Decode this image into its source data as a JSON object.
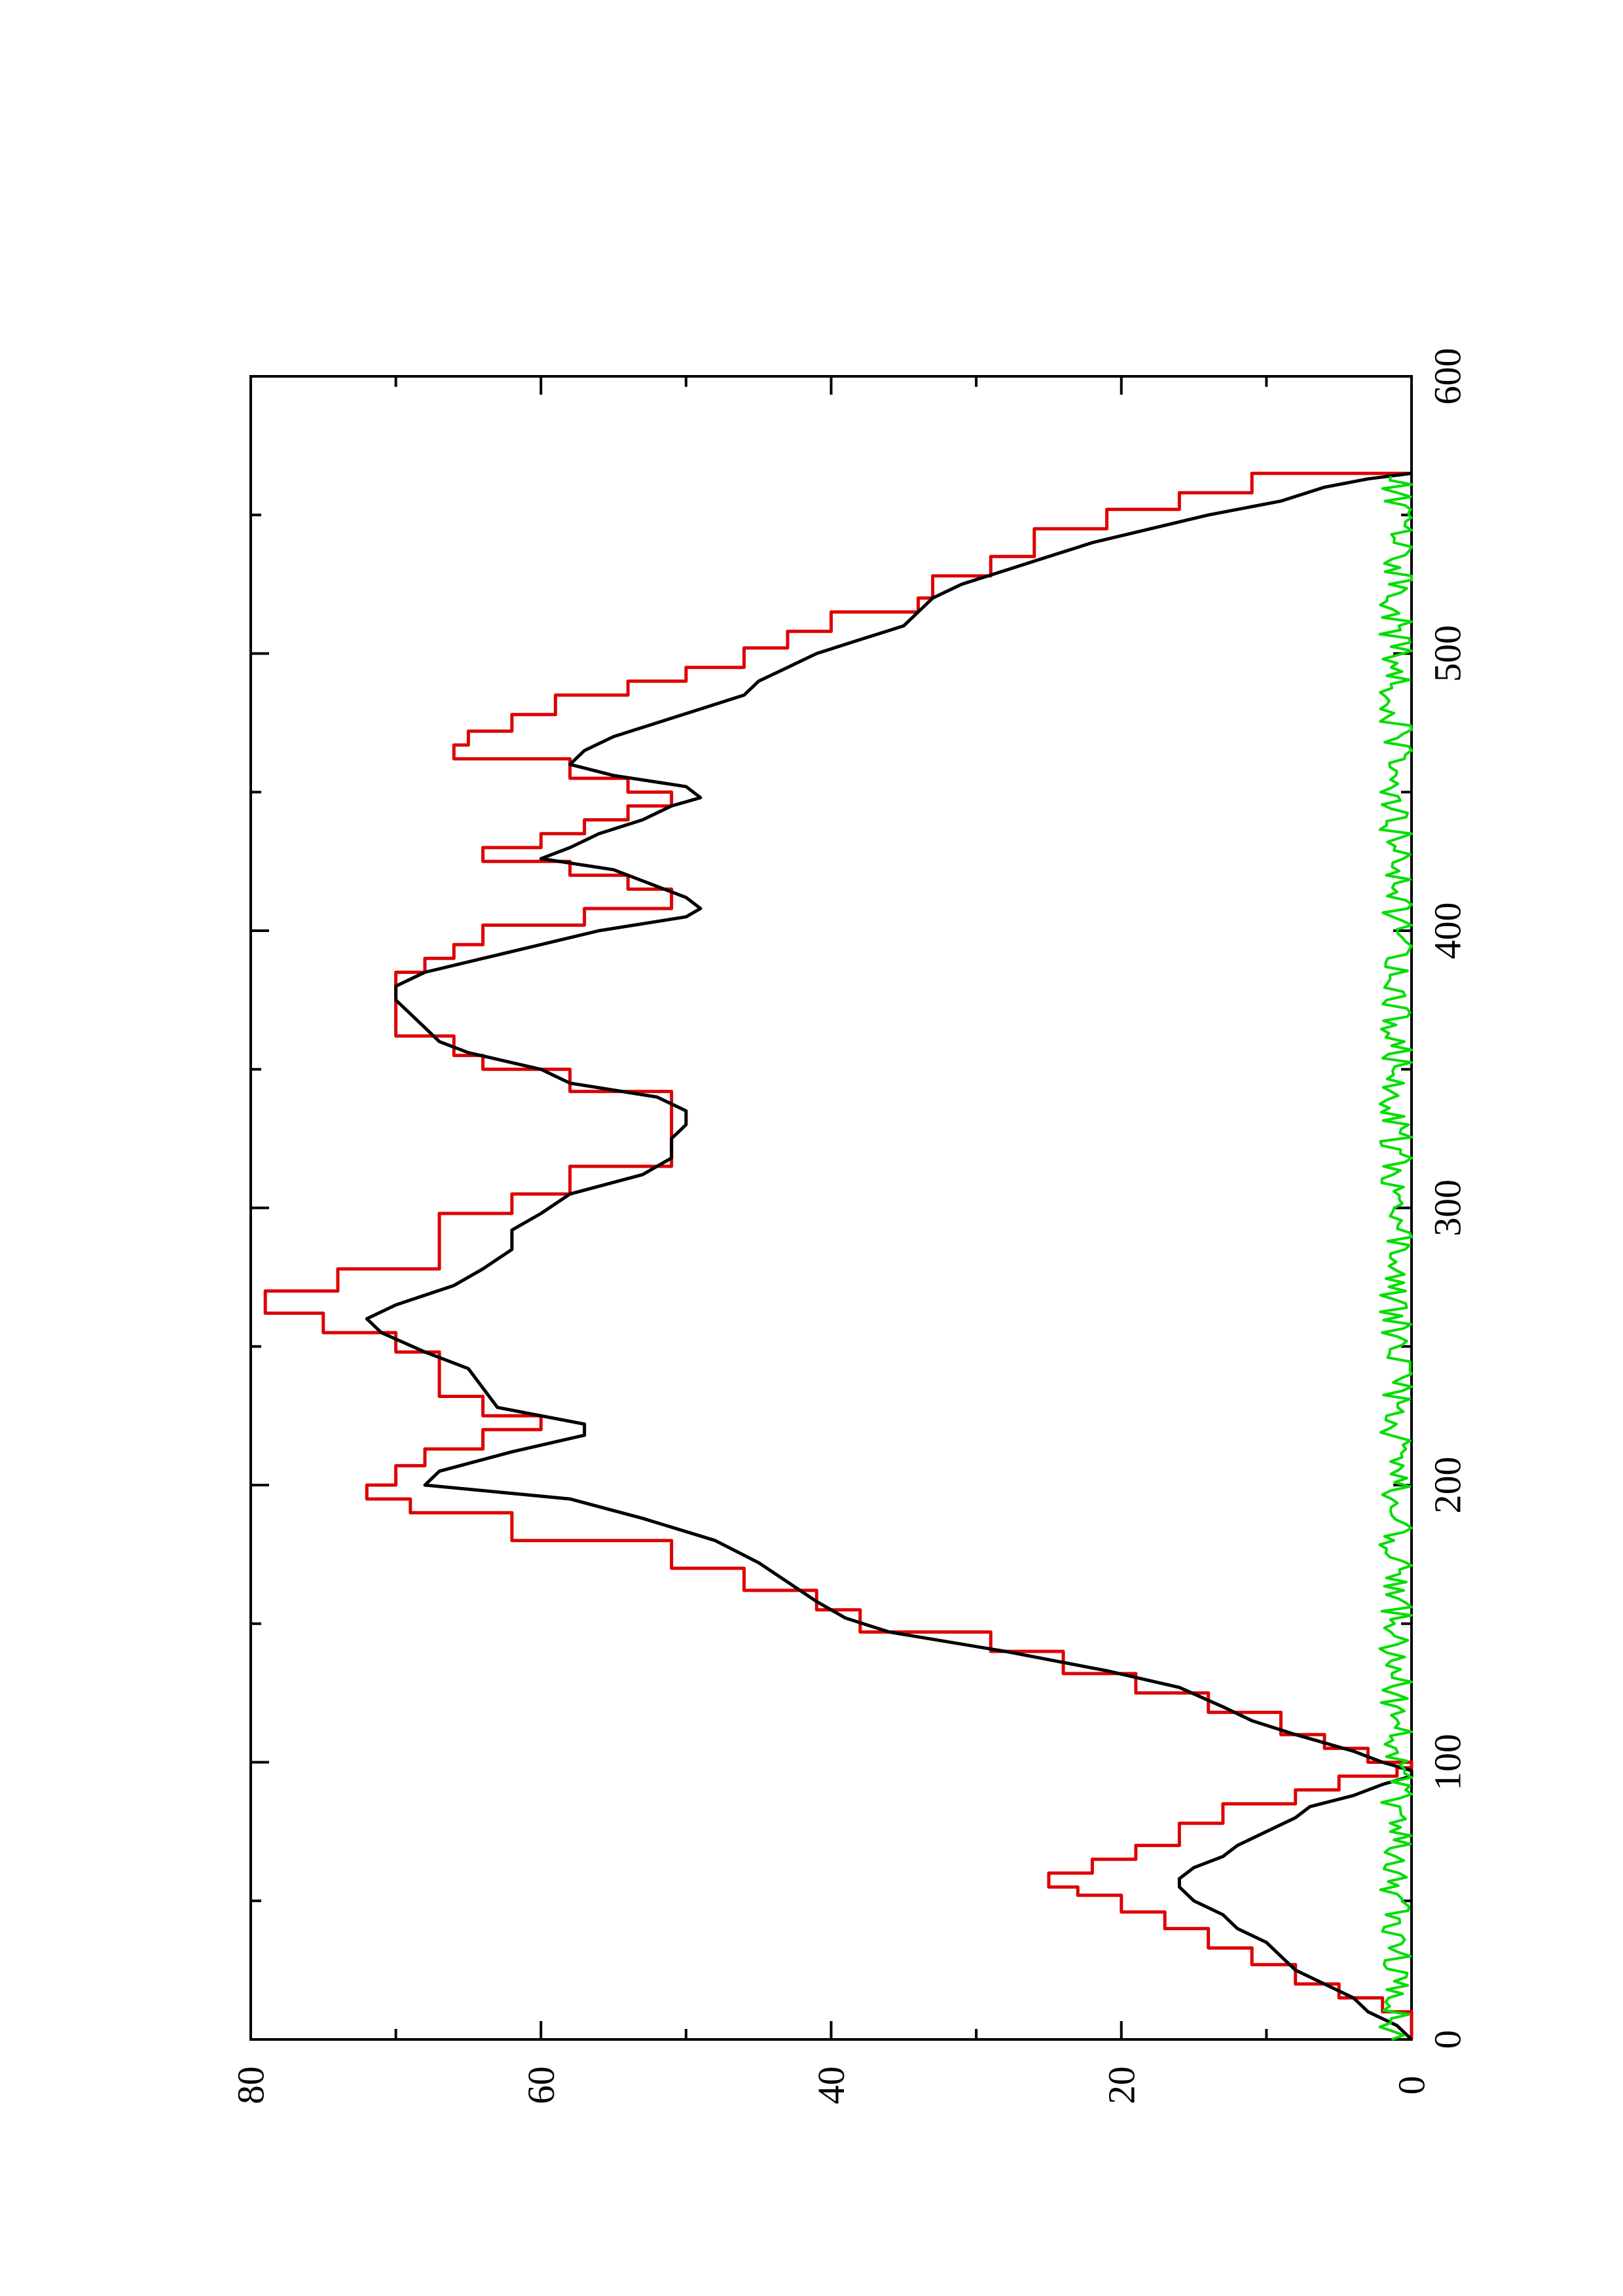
{
  "chart_data": {
    "type": "line",
    "orientation": "rotated 90 degrees counter-clockwise (page is landscape plot printed portrait)",
    "title": "",
    "xlabel": "",
    "ylabel": "",
    "xlim": [
      0,
      600
    ],
    "ylim": [
      0,
      80
    ],
    "x_ticks": [
      0,
      100,
      200,
      300,
      400,
      500,
      600
    ],
    "y_ticks": [
      0,
      20,
      40,
      60,
      80
    ],
    "x_tick_labels": [
      "0",
      "100",
      "200",
      "300",
      "400",
      "500",
      "600"
    ],
    "y_tick_labels": [
      "0",
      "20",
      "40",
      "60",
      "80"
    ],
    "grid": false,
    "legend": "none",
    "series": [
      {
        "color": "#dd0000",
        "style": "step",
        "points": [
          [
            0,
            0
          ],
          [
            10,
            2
          ],
          [
            15,
            5
          ],
          [
            20,
            8
          ],
          [
            27,
            11
          ],
          [
            33,
            14
          ],
          [
            40,
            17
          ],
          [
            46,
            20
          ],
          [
            52,
            23
          ],
          [
            55,
            25
          ],
          [
            60,
            22
          ],
          [
            65,
            19
          ],
          [
            70,
            16
          ],
          [
            78,
            13
          ],
          [
            85,
            8
          ],
          [
            90,
            5
          ],
          [
            95,
            1
          ],
          [
            98,
            0
          ],
          [
            100,
            3
          ],
          [
            105,
            6
          ],
          [
            110,
            9
          ],
          [
            118,
            14
          ],
          [
            125,
            19
          ],
          [
            132,
            24
          ],
          [
            140,
            29
          ],
          [
            147,
            38
          ],
          [
            155,
            41
          ],
          [
            162,
            46
          ],
          [
            170,
            51
          ],
          [
            180,
            62
          ],
          [
            190,
            69
          ],
          [
            195,
            72
          ],
          [
            200,
            70
          ],
          [
            207,
            68
          ],
          [
            213,
            64
          ],
          [
            220,
            60
          ],
          [
            225,
            64
          ],
          [
            232,
            67
          ],
          [
            240,
            67
          ],
          [
            248,
            70
          ],
          [
            255,
            75
          ],
          [
            262,
            79
          ],
          [
            270,
            74
          ],
          [
            278,
            67
          ],
          [
            285,
            67
          ],
          [
            292,
            67
          ],
          [
            298,
            62
          ],
          [
            305,
            58
          ],
          [
            315,
            51
          ],
          [
            320,
            51
          ],
          [
            325,
            51
          ],
          [
            335,
            51
          ],
          [
            342,
            58
          ],
          [
            350,
            64
          ],
          [
            355,
            66
          ],
          [
            362,
            70
          ],
          [
            370,
            70
          ],
          [
            378,
            70
          ],
          [
            385,
            68
          ],
          [
            390,
            66
          ],
          [
            395,
            64
          ],
          [
            402,
            57
          ],
          [
            408,
            51
          ],
          [
            415,
            54
          ],
          [
            420,
            58
          ],
          [
            425,
            64
          ],
          [
            430,
            60
          ],
          [
            435,
            57
          ],
          [
            440,
            54
          ],
          [
            445,
            51
          ],
          [
            450,
            54
          ],
          [
            455,
            58
          ],
          [
            462,
            66
          ],
          [
            467,
            65
          ],
          [
            472,
            62
          ],
          [
            478,
            59
          ],
          [
            485,
            54
          ],
          [
            490,
            50
          ],
          [
            495,
            46
          ],
          [
            502,
            43
          ],
          [
            508,
            40
          ],
          [
            515,
            34
          ],
          [
            520,
            33
          ],
          [
            528,
            29
          ],
          [
            535,
            26
          ],
          [
            545,
            21
          ],
          [
            552,
            16
          ],
          [
            558,
            11
          ],
          [
            565,
            0
          ]
        ]
      },
      {
        "color": "#000000",
        "style": "line",
        "points": [
          [
            0,
            0
          ],
          [
            5,
            1
          ],
          [
            10,
            3
          ],
          [
            15,
            4
          ],
          [
            20,
            6
          ],
          [
            25,
            8
          ],
          [
            30,
            9
          ],
          [
            35,
            10
          ],
          [
            40,
            12
          ],
          [
            45,
            13
          ],
          [
            50,
            15
          ],
          [
            55,
            16
          ],
          [
            58,
            16
          ],
          [
            62,
            15
          ],
          [
            66,
            13
          ],
          [
            70,
            12
          ],
          [
            75,
            10
          ],
          [
            80,
            8
          ],
          [
            84,
            7
          ],
          [
            88,
            4
          ],
          [
            92,
            2
          ],
          [
            95,
            0
          ],
          [
            97,
            0
          ],
          [
            100,
            2
          ],
          [
            104,
            4
          ],
          [
            110,
            8
          ],
          [
            115,
            11
          ],
          [
            120,
            13
          ],
          [
            127,
            16
          ],
          [
            133,
            21
          ],
          [
            140,
            28
          ],
          [
            147,
            36
          ],
          [
            152,
            39
          ],
          [
            158,
            41
          ],
          [
            165,
            43
          ],
          [
            172,
            45
          ],
          [
            180,
            48
          ],
          [
            188,
            53
          ],
          [
            195,
            58
          ],
          [
            200,
            68
          ],
          [
            205,
            67
          ],
          [
            212,
            62
          ],
          [
            218,
            57
          ],
          [
            222,
            57
          ],
          [
            228,
            63
          ],
          [
            235,
            64
          ],
          [
            242,
            65
          ],
          [
            248,
            68
          ],
          [
            255,
            71
          ],
          [
            260,
            72
          ],
          [
            265,
            70
          ],
          [
            272,
            66
          ],
          [
            278,
            64
          ],
          [
            285,
            62
          ],
          [
            292,
            62
          ],
          [
            298,
            60
          ],
          [
            305,
            58
          ],
          [
            312,
            53
          ],
          [
            318,
            51
          ],
          [
            325,
            51
          ],
          [
            330,
            50
          ],
          [
            335,
            50
          ],
          [
            340,
            52
          ],
          [
            345,
            58
          ],
          [
            350,
            60
          ],
          [
            356,
            65
          ],
          [
            360,
            67
          ],
          [
            365,
            68
          ],
          [
            370,
            69
          ],
          [
            375,
            70
          ],
          [
            380,
            70
          ],
          [
            385,
            68
          ],
          [
            390,
            64
          ],
          [
            395,
            60
          ],
          [
            400,
            56
          ],
          [
            405,
            50
          ],
          [
            408,
            49
          ],
          [
            412,
            50
          ],
          [
            418,
            53
          ],
          [
            422,
            55
          ],
          [
            426,
            60
          ],
          [
            430,
            58
          ],
          [
            435,
            56
          ],
          [
            440,
            53
          ],
          [
            445,
            51
          ],
          [
            448,
            49
          ],
          [
            452,
            50
          ],
          [
            456,
            55
          ],
          [
            460,
            58
          ],
          [
            465,
            57
          ],
          [
            470,
            55
          ],
          [
            475,
            52
          ],
          [
            480,
            49
          ],
          [
            485,
            46
          ],
          [
            490,
            45
          ],
          [
            495,
            43
          ],
          [
            500,
            41
          ],
          [
            505,
            38
          ],
          [
            510,
            35
          ],
          [
            515,
            34
          ],
          [
            520,
            33
          ],
          [
            525,
            31
          ],
          [
            530,
            28
          ],
          [
            535,
            25
          ],
          [
            540,
            22
          ],
          [
            545,
            18
          ],
          [
            550,
            14
          ],
          [
            555,
            9
          ],
          [
            560,
            6
          ],
          [
            563,
            3
          ],
          [
            565,
            0
          ]
        ]
      },
      {
        "color": "#00dd00",
        "style": "noise",
        "mean": 1.0,
        "amplitude": 1.2,
        "x_range": [
          0,
          565
        ]
      }
    ]
  }
}
